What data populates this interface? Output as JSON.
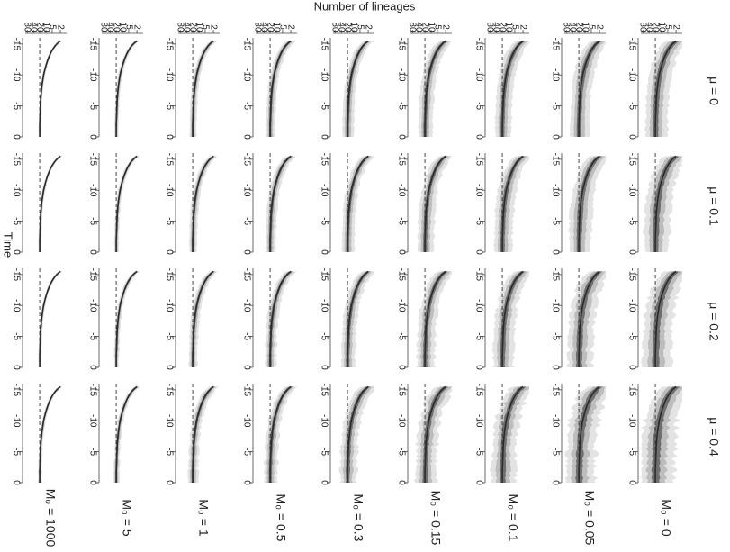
{
  "chart_data": {
    "type": "area",
    "title": "",
    "xlabel": "Time",
    "ylabel": "Number of lineages",
    "y_scale": "log",
    "x_ticks": [
      -15,
      -10,
      -5,
      0
    ],
    "y_ticks": [
      2,
      5,
      10,
      20,
      40,
      80
    ],
    "xlim": [
      -16,
      0
    ],
    "ylim": [
      1,
      100
    ],
    "reference_line": {
      "style": "dashed",
      "y": 20
    },
    "band_colors": {
      "outer": "#e3e3e3",
      "middle": "#bdbdbd",
      "inner": "#6e6e6e",
      "median": "#2a2a2a"
    },
    "column_labels": [
      "μ = 0",
      "μ = 0.1",
      "μ = 0.2",
      "μ = 0.4"
    ],
    "column_mu": [
      0,
      0.1,
      0.2,
      0.4
    ],
    "row_labels": [
      "M₀ = 0",
      "M₀ = 0.05",
      "M₀ = 0.1",
      "M₀ = 0.15",
      "M₀ = 0.3",
      "M₀ = 0.5",
      "M₀ = 1",
      "M₀ = 5",
      "M₀ = 1000"
    ],
    "row_M0": [
      0,
      0.05,
      0.1,
      0.15,
      0.3,
      0.5,
      1,
      5,
      1000
    ],
    "median_curve": {
      "time": [
        -15.5,
        -14,
        -12,
        -10,
        -8,
        -6,
        -4,
        -2,
        0
      ],
      "lineages": [
        2,
        5,
        9,
        13,
        16,
        18,
        19,
        20,
        20
      ]
    }
  }
}
